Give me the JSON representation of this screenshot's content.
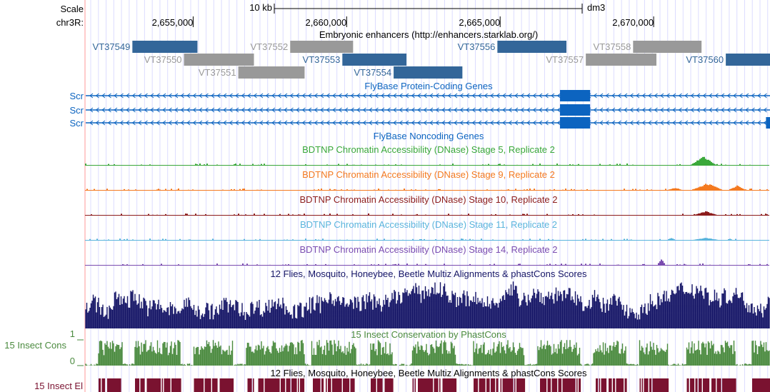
{
  "header": {
    "scale_label": "Scale",
    "scale_bar_label": "10 kb",
    "assembly": "dm3",
    "chrom_label": "chr3R:",
    "ticks": [
      {
        "pos": 2655000,
        "label": "2,655,000"
      },
      {
        "pos": 2660000,
        "label": "2,660,000"
      },
      {
        "pos": 2665000,
        "label": "2,665,000"
      },
      {
        "pos": 2670000,
        "label": "2,670,000"
      }
    ]
  },
  "region": {
    "chrom": "chr3R",
    "start": 2651500,
    "end": 2673790
  },
  "enhancers": {
    "title": "Embryonic enhancers (http://enhancers.starklab.org/)",
    "items": [
      {
        "name": "VT37549",
        "start": 2653020,
        "end": 2655140,
        "row": 0,
        "active": true
      },
      {
        "name": "VT37550",
        "start": 2654700,
        "end": 2656980,
        "row": 1,
        "active": false
      },
      {
        "name": "VT37551",
        "start": 2656470,
        "end": 2658630,
        "row": 2,
        "active": false
      },
      {
        "name": "VT37552",
        "start": 2658160,
        "end": 2660210,
        "row": 0,
        "active": false
      },
      {
        "name": "VT37553",
        "start": 2659860,
        "end": 2661950,
        "row": 1,
        "active": true
      },
      {
        "name": "VT37554",
        "start": 2661530,
        "end": 2663770,
        "row": 2,
        "active": true
      },
      {
        "name": "VT37556",
        "start": 2664910,
        "end": 2667160,
        "row": 0,
        "active": true
      },
      {
        "name": "VT37557",
        "start": 2667790,
        "end": 2670090,
        "row": 1,
        "active": false
      },
      {
        "name": "VT37558",
        "start": 2669330,
        "end": 2671560,
        "row": 0,
        "active": false
      },
      {
        "name": "VT37560",
        "start": 2672350,
        "end": 2673790,
        "row": 1,
        "active": true
      }
    ]
  },
  "genes": {
    "title": "FlyBase Protein-Coding Genes",
    "strand": "-",
    "transcripts": [
      {
        "name": "Scr",
        "exons": [
          [
            2666950,
            2667930
          ]
        ]
      },
      {
        "name": "Scr",
        "exons": [
          [
            2666950,
            2667930
          ]
        ]
      },
      {
        "name": "Scr",
        "exons": [
          [
            2666950,
            2667930
          ],
          [
            2673660,
            2673790
          ]
        ]
      }
    ]
  },
  "noncoding": {
    "title": "FlyBase Noncoding Genes"
  },
  "dnase_tracks": [
    {
      "title": "BDTNP Chromatin Accessibility (DNase) Stage 5, Replicate 2",
      "color": "#3aa83a"
    },
    {
      "title": "BDTNP Chromatin Accessibility (DNase) Stage 9, Replicate 2",
      "color": "#f47a20"
    },
    {
      "title": "BDTNP Chromatin Accessibility (DNase) Stage 10, Replicate 2",
      "color": "#8c1c1c"
    },
    {
      "title": "BDTNP Chromatin Accessibility (DNase) Stage 11, Replicate 2",
      "color": "#5ab4dc"
    },
    {
      "title": "BDTNP Chromatin Accessibility (DNase) Stage 14, Replicate 2",
      "color": "#7a4cb0"
    }
  ],
  "multiz": {
    "title": "12 Flies, Mosquito, Honeybee, Beetle Multiz Alignments & phastCons Scores",
    "color": "#151566"
  },
  "phastcons": {
    "title": "15 Insect Conservation by PhastCons",
    "side_label": "15 Insect Cons",
    "max_label": "1",
    "min_label": "0",
    "color": "#4a8a3e"
  },
  "multiz2": {
    "title": "12 Flies, Mosquito, Honeybee, Beetle Multiz Alignments & phastCons Scores"
  },
  "elements": {
    "side_label": "15 Insect El",
    "color": "#7a1230"
  },
  "colors": {
    "enhancer_active": "#336699",
    "enhancer_inactive": "#999999",
    "gene": "#0c64c0",
    "grid": "#dcdcff",
    "left_border": "#ffcccc"
  }
}
